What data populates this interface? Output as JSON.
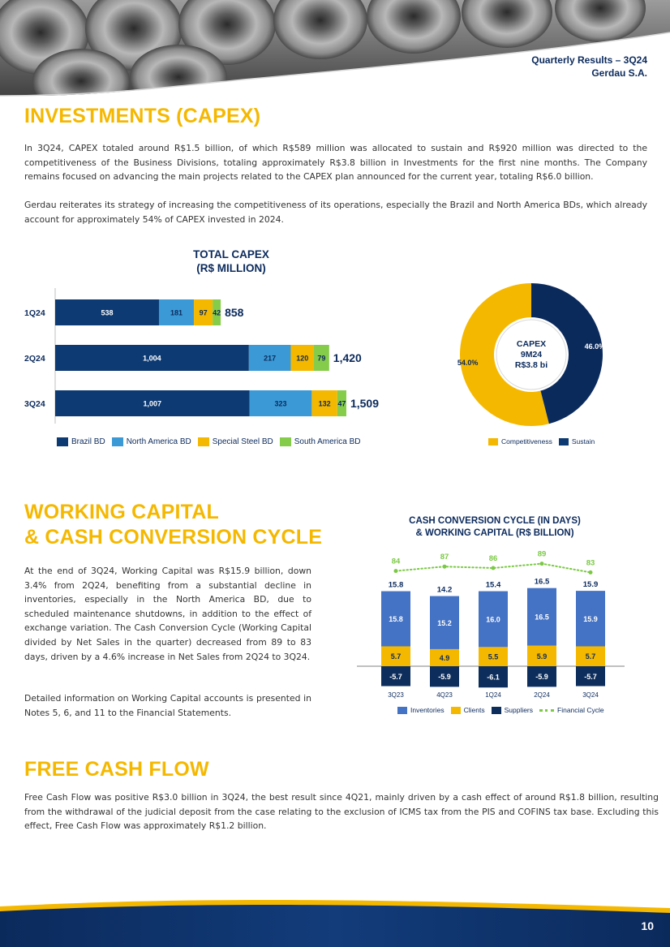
{
  "header": {
    "line1": "Quarterly Results – 3Q24",
    "line2": "Gerdau S.A."
  },
  "investments": {
    "title": "INVESTMENTS (CAPEX)",
    "paragraph1": "In 3Q24, CAPEX totaled around R$1.5 billion, of which R$589 million was allocated to sustain and R$920 million was directed to the competitiveness of the Business Divisions, totaling approximately R$3.8 billion in Investments for the first nine months. The Company remains focused on advancing the main projects related to the CAPEX plan announced for the current year, totaling R$6.0 billion.",
    "paragraph2": "Gerdau reiterates its strategy of increasing the competitiveness of its operations, especially the Brazil and North America BDs, which already account for approximately 54% of CAPEX invested in 2024."
  },
  "working_capital": {
    "title_line1": "WORKING CAPITAL",
    "title_line2": "& CASH CONVERSION CYCLE",
    "paragraph1": "At the end of 3Q24, Working Capital was R$15.9 billion, down 3.4% from 2Q24, benefiting from a substantial decline in inventories, especially in the North America BD, due to scheduled maintenance shutdowns, in addition to the effect of exchange variation. The Cash Conversion Cycle (Working Capital divided by Net Sales in the quarter) decreased from 89 to 83 days, driven by a 4.6% increase in Net Sales from 2Q24 to 3Q24.",
    "paragraph2": "Detailed information on Working Capital accounts is presented in Notes 5, 6, and 11 to the Financial Statements."
  },
  "free_cash_flow": {
    "title": "FREE CASH FLOW",
    "paragraph": "Free Cash Flow was positive R$3.0 billion in 3Q24, the best result since 4Q21, mainly driven by a cash effect of around R$1.8 billion, resulting from the withdrawal of the judicial deposit from the case relating to the exclusion of ICMS tax from the PIS and COFINS tax base. Excluding this effect, Free Cash Flow was approximately R$1.2 billion."
  },
  "page_number": "10",
  "colors": {
    "navy": "#0b2a5c",
    "brazil": "#0d3a73",
    "north_america": "#3b9ad6",
    "special_steel": "#f5b800",
    "south_america": "#86cc4b",
    "inventories": "#4472c4",
    "clients": "#f5b800",
    "suppliers": "#0d2d5c",
    "cycle": "#7ac943",
    "heading": "#f5b800"
  },
  "chart_data": [
    {
      "type": "bar",
      "orientation": "horizontal",
      "stacked": true,
      "title_line1": "TOTAL CAPEX",
      "title_line2": "(R$ MILLION)",
      "categories": [
        "1Q24",
        "2Q24",
        "3Q24"
      ],
      "series": [
        {
          "name": "Brazil BD",
          "values": [
            538,
            1004,
            1007
          ],
          "labels": [
            "538",
            "1,004",
            "1,007"
          ]
        },
        {
          "name": "North America BD",
          "values": [
            181,
            217,
            323
          ],
          "labels": [
            "181",
            "217",
            "323"
          ]
        },
        {
          "name": "Special Steel BD",
          "values": [
            97,
            120,
            132
          ],
          "labels": [
            "97",
            "120",
            "132"
          ]
        },
        {
          "name": "South America BD",
          "values": [
            42,
            79,
            47
          ],
          "labels": [
            "42",
            "79",
            "47"
          ]
        }
      ],
      "totals": [
        858,
        1420,
        1509
      ],
      "total_labels": [
        "858",
        "1,420",
        "1,509"
      ],
      "xlim": [
        0,
        1900
      ],
      "legend_position": "bottom"
    },
    {
      "type": "pie",
      "donut": true,
      "center_line1": "CAPEX",
      "center_line2": "9M24",
      "center_line3": "R$3.8 bi",
      "slices": [
        {
          "name": "Competitiveness",
          "value": 54.0,
          "label": "54.0%"
        },
        {
          "name": "Sustain",
          "value": 46.0,
          "label": "46.0%"
        }
      ],
      "legend_position": "bottom"
    },
    {
      "type": "bar",
      "stacked": true,
      "title_line1": "CASH CONVERSION CYCLE (IN DAYS)",
      "title_line2": "& WORKING CAPITAL (R$ BILLION)",
      "categories": [
        "3Q23",
        "4Q23",
        "1Q24",
        "2Q24",
        "3Q24"
      ],
      "series": [
        {
          "name": "Inventories",
          "values": [
            15.8,
            15.2,
            16.0,
            16.5,
            15.9
          ],
          "labels": [
            "15.8",
            "15.2",
            "16.0",
            "16.5",
            "15.9"
          ]
        },
        {
          "name": "Clients",
          "values": [
            5.7,
            4.9,
            5.5,
            5.9,
            5.7
          ],
          "labels": [
            "5.7",
            "4.9",
            "5.5",
            "5.9",
            "5.7"
          ]
        },
        {
          "name": "Suppliers",
          "values": [
            -5.7,
            -5.9,
            -6.1,
            -5.9,
            -5.7
          ],
          "labels": [
            "-5.7",
            "-5.9",
            "-6.1",
            "-5.9",
            "-5.7"
          ]
        }
      ],
      "totals": [
        15.8,
        14.2,
        15.4,
        16.5,
        15.9
      ],
      "total_labels": [
        "15.8",
        "14.2",
        "15.4",
        "16.5",
        "15.9"
      ],
      "line_series": {
        "name": "Financial Cycle",
        "values": [
          84,
          87,
          86,
          89,
          83
        ],
        "labels": [
          "84",
          "87",
          "86",
          "89",
          "83"
        ]
      },
      "legend_position": "bottom"
    }
  ]
}
